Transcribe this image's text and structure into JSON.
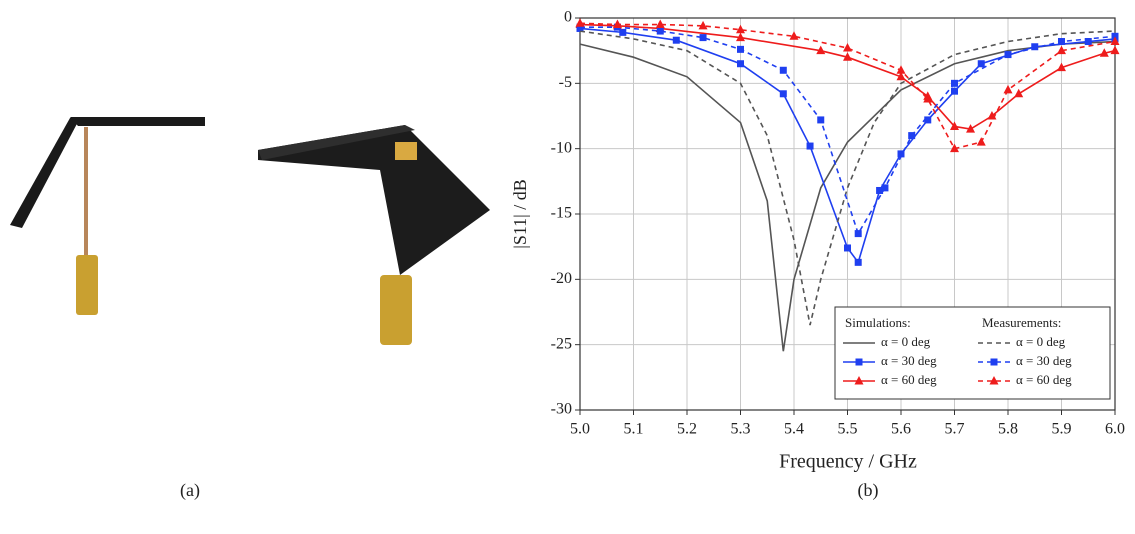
{
  "captions": [
    "(a)",
    "(b)"
  ],
  "chart_data": {
    "type": "line",
    "xlabel": "Frequency / GHz",
    "ylabel": "|S11| / dB",
    "xlim": [
      5.0,
      6.0
    ],
    "ylim": [
      -30,
      0
    ],
    "xticks": [
      {
        "value": 5.0,
        "label": "5.0"
      },
      5.1,
      5.2,
      5.3,
      5.4,
      5.5,
      5.6,
      5.7,
      5.8,
      5.9,
      {
        "value": 6.0,
        "label": "6.0"
      }
    ],
    "yticks": [
      0,
      -5,
      -10,
      -15,
      -20,
      -25,
      -30
    ],
    "grid": true,
    "legend_titles": [
      "Simulations:",
      "Measurements:"
    ],
    "series": [
      {
        "name": "α = 0 deg",
        "color": "#555555",
        "line_style": "solid",
        "marker": "none",
        "x": [
          5.0,
          5.1,
          5.2,
          5.3,
          5.35,
          5.38,
          5.4,
          5.45,
          5.5,
          5.6,
          5.7,
          5.8,
          5.9,
          6.0
        ],
        "values": [
          -2,
          -3,
          -4.5,
          -8,
          -14,
          -25.5,
          -20,
          -13,
          -9.5,
          -5.5,
          -3.5,
          -2.5,
          -2,
          -1.8
        ]
      },
      {
        "name": "α = 30 deg",
        "color": "#1f3ff0",
        "line_style": "solid",
        "marker": "square",
        "x": [
          5.0,
          5.08,
          5.18,
          5.3,
          5.38,
          5.43,
          5.5,
          5.52,
          5.56,
          5.6,
          5.65,
          5.7,
          5.75,
          5.85,
          5.95,
          6.0
        ],
        "values": [
          -0.8,
          -1.1,
          -1.7,
          -3.5,
          -5.8,
          -9.8,
          -17.6,
          -18.7,
          -13.2,
          -10.4,
          -7.8,
          -5.6,
          -3.5,
          -2.2,
          -1.8,
          -1.6
        ]
      },
      {
        "name": "α = 60 deg",
        "color": "#ee1c1c",
        "line_style": "solid",
        "marker": "triangle",
        "x": [
          5.0,
          5.07,
          5.15,
          5.3,
          5.45,
          5.5,
          5.6,
          5.65,
          5.7,
          5.73,
          5.77,
          5.82,
          5.9,
          5.98,
          6.0
        ],
        "values": [
          -0.5,
          -0.6,
          -0.8,
          -1.5,
          -2.5,
          -3,
          -4.5,
          -6,
          -8.3,
          -8.5,
          -7.5,
          -5.8,
          -3.8,
          -2.7,
          -2.5
        ]
      },
      {
        "name": "α = 0 deg",
        "color": "#555555",
        "line_style": "dashed",
        "marker": "none",
        "x": [
          5.0,
          5.1,
          5.2,
          5.3,
          5.35,
          5.4,
          5.43,
          5.45,
          5.5,
          5.55,
          5.6,
          5.7,
          5.8,
          5.9,
          6.0
        ],
        "values": [
          -1,
          -1.6,
          -2.5,
          -5,
          -9,
          -17,
          -23.5,
          -20,
          -13,
          -8,
          -5,
          -2.8,
          -1.8,
          -1.2,
          -1
        ]
      },
      {
        "name": "α = 30 deg",
        "color": "#1f3ff0",
        "line_style": "dashed",
        "marker": "square",
        "x": [
          5.0,
          5.07,
          5.15,
          5.23,
          5.3,
          5.38,
          5.45,
          5.52,
          5.57,
          5.62,
          5.7,
          5.8,
          5.9,
          6.0
        ],
        "values": [
          -0.7,
          -0.7,
          -1.0,
          -1.5,
          -2.4,
          -4,
          -7.8,
          -16.5,
          -13,
          -9,
          -5,
          -2.8,
          -1.8,
          -1.4
        ]
      },
      {
        "name": "α = 60 deg",
        "color": "#ee1c1c",
        "line_style": "dashed",
        "marker": "triangle",
        "x": [
          5.0,
          5.07,
          5.15,
          5.23,
          5.3,
          5.4,
          5.5,
          5.6,
          5.65,
          5.7,
          5.75,
          5.8,
          5.9,
          6.0
        ],
        "values": [
          -0.4,
          -0.5,
          -0.5,
          -0.6,
          -0.9,
          -1.4,
          -2.3,
          -4,
          -6.2,
          -10,
          -9.5,
          -5.5,
          -2.5,
          -1.8
        ]
      }
    ]
  }
}
